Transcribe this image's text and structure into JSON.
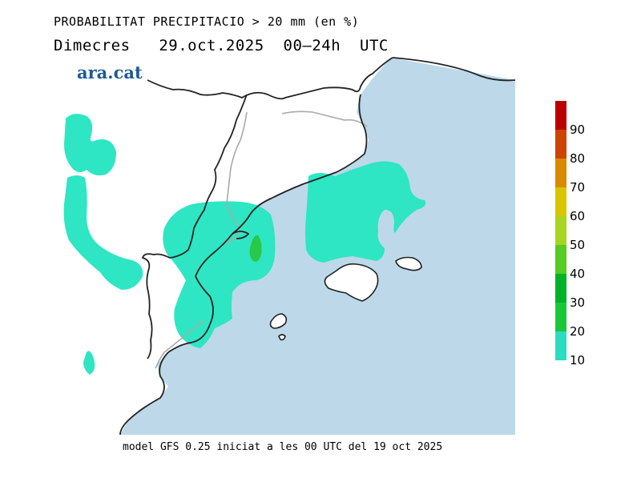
{
  "header": {
    "title": "PROBABILITAT PRECIPITACIO > 20 mm (en %)",
    "subtitle": "Dimecres   29.oct.2025  00–24h  UTC",
    "brand": "ara.cat"
  },
  "footer": {
    "model_text": "model GFS 0.25 iniciat a les 00 UTC del 19 oct 2025"
  },
  "legend": {
    "labels": [
      "10",
      "20",
      "30",
      "40",
      "50",
      "60",
      "70",
      "80",
      "90"
    ],
    "colors": [
      "#2adcc0",
      "#17c93a",
      "#00b22a",
      "#55cc22",
      "#a8d51f",
      "#d9c400",
      "#d98a00",
      "#cc4400",
      "#bb0000"
    ]
  },
  "map_colors": {
    "sea": "#bcd8e9",
    "land": "#ffffff",
    "prob_10_20": "#2ee6c3",
    "prob_20_30": "#2ac84a",
    "coast": "#222222",
    "border": "#aaaaaa"
  }
}
